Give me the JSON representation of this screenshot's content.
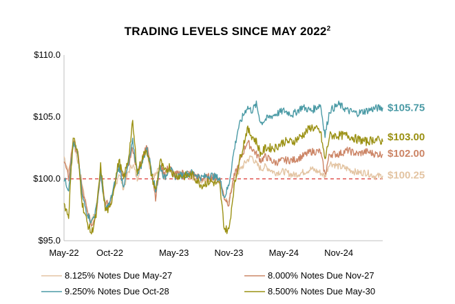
{
  "chart_data": {
    "type": "line",
    "title": "TRADING LEVELS SINCE MAY 2022",
    "title_superscript": "2",
    "xlabel": "",
    "ylabel": "",
    "ylim": [
      95,
      110
    ],
    "y_ticks": [
      "$95.0",
      "$100.0",
      "$105.0",
      "$110.0"
    ],
    "y_tick_values": [
      95,
      100,
      105,
      110
    ],
    "x_ticks": [
      "May-22",
      "Oct-22",
      "May-23",
      "Nov-23",
      "May-24",
      "Nov-24"
    ],
    "x_tick_months": [
      0,
      5,
      12,
      18,
      24,
      30
    ],
    "x_range_months": [
      0,
      34.8
    ],
    "reference_line": 100,
    "reference_color": "#d9302c",
    "grid": false,
    "legend_position": "bottom",
    "series": [
      {
        "name": "8.125% Notes Due May-27",
        "color": "#e3c4a2",
        "end_label": "$100.25",
        "points": [
          [
            0,
            101.8
          ],
          [
            0.5,
            100.5
          ],
          [
            1,
            103
          ],
          [
            1.5,
            101.5
          ],
          [
            2,
            99.5
          ],
          [
            2.5,
            97.5
          ],
          [
            3,
            96.5
          ],
          [
            3.5,
            97.5
          ],
          [
            4,
            100.5
          ],
          [
            4.5,
            98
          ],
          [
            5,
            97.8
          ],
          [
            5.5,
            99
          ],
          [
            6,
            100.5
          ],
          [
            6.5,
            99.2
          ],
          [
            7,
            100.5
          ],
          [
            7.5,
            101.2
          ],
          [
            8,
            100
          ],
          [
            8.5,
            101.5
          ],
          [
            9,
            102.5
          ],
          [
            9.5,
            100.5
          ],
          [
            10,
            100.3
          ],
          [
            10.5,
            101
          ],
          [
            11,
            100.2
          ],
          [
            11.5,
            100.8
          ],
          [
            12,
            100.3
          ],
          [
            13,
            100.4
          ],
          [
            14,
            100.1
          ],
          [
            15,
            99.8
          ],
          [
            16,
            100
          ],
          [
            17,
            99.8
          ],
          [
            17.5,
            98.5
          ],
          [
            18,
            98
          ],
          [
            18.5,
            99.8
          ],
          [
            19,
            100.5
          ],
          [
            19.5,
            101
          ],
          [
            20,
            101.5
          ],
          [
            20.5,
            101.8
          ],
          [
            21,
            101.2
          ],
          [
            21.5,
            100.8
          ],
          [
            22,
            101
          ],
          [
            23,
            100.5
          ],
          [
            24,
            100.6
          ],
          [
            25,
            100.3
          ],
          [
            26,
            100.5
          ],
          [
            27,
            100.8
          ],
          [
            28,
            100.5
          ],
          [
            28.5,
            100.2
          ],
          [
            29,
            101.3
          ],
          [
            30,
            101
          ],
          [
            31,
            100.8
          ],
          [
            32,
            100.5
          ],
          [
            33,
            100.5
          ],
          [
            34,
            100.2
          ],
          [
            34.8,
            100.25
          ]
        ]
      },
      {
        "name": "8.000% Notes Due Nov-27",
        "color": "#cc8566",
        "end_label": "$102.00",
        "points": [
          [
            0,
            101.5
          ],
          [
            0.5,
            100
          ],
          [
            1,
            103.2
          ],
          [
            1.5,
            102
          ],
          [
            2,
            99
          ],
          [
            2.5,
            97.5
          ],
          [
            3,
            96.2
          ],
          [
            3.5,
            97.2
          ],
          [
            4,
            100.5
          ],
          [
            4.5,
            98
          ],
          [
            5,
            98
          ],
          [
            5.5,
            99.5
          ],
          [
            6,
            101
          ],
          [
            6.5,
            100
          ],
          [
            7,
            101
          ],
          [
            7.5,
            102.5
          ],
          [
            8,
            100.5
          ],
          [
            8.5,
            101.5
          ],
          [
            9,
            102.8
          ],
          [
            9.5,
            101
          ],
          [
            10,
            98.5
          ],
          [
            10.5,
            101
          ],
          [
            11,
            100.5
          ],
          [
            11.5,
            101
          ],
          [
            12,
            100.3
          ],
          [
            13,
            100.5
          ],
          [
            14,
            100.4
          ],
          [
            15,
            100
          ],
          [
            16,
            100.2
          ],
          [
            17,
            100
          ],
          [
            17.5,
            98.5
          ],
          [
            18,
            98
          ],
          [
            18.5,
            100
          ],
          [
            19,
            101
          ],
          [
            19.5,
            102
          ],
          [
            20,
            103
          ],
          [
            20.5,
            102.5
          ],
          [
            21,
            102
          ],
          [
            21.5,
            101.5
          ],
          [
            22,
            101.8
          ],
          [
            23,
            101.3
          ],
          [
            24,
            101.5
          ],
          [
            25,
            101.5
          ],
          [
            26,
            101.8
          ],
          [
            27,
            102.2
          ],
          [
            28,
            102.2
          ],
          [
            28.5,
            100.3
          ],
          [
            29,
            102
          ],
          [
            30,
            102
          ],
          [
            31,
            102.3
          ],
          [
            32,
            102
          ],
          [
            33,
            102.2
          ],
          [
            34,
            102
          ],
          [
            34.8,
            102
          ]
        ]
      },
      {
        "name": "9.250% Notes Due Oct-28",
        "color": "#4a9aa5",
        "end_label": "$105.75",
        "points": [
          [
            0,
            100
          ],
          [
            0.5,
            99.2
          ],
          [
            1,
            102.8
          ],
          [
            1.5,
            102
          ],
          [
            2,
            98.5
          ],
          [
            2.5,
            97.3
          ],
          [
            3,
            96.5
          ],
          [
            3.5,
            97.5
          ],
          [
            4,
            100.5
          ],
          [
            4.5,
            97.5
          ],
          [
            5,
            98
          ],
          [
            5.5,
            99.5
          ],
          [
            6,
            101
          ],
          [
            6.5,
            99.5
          ],
          [
            7,
            101
          ],
          [
            7.5,
            103
          ],
          [
            8,
            100.5
          ],
          [
            8.5,
            101.2
          ],
          [
            9,
            102.5
          ],
          [
            9.5,
            101
          ],
          [
            10,
            99
          ],
          [
            10.5,
            101
          ],
          [
            11,
            100
          ],
          [
            11.5,
            101
          ],
          [
            12,
            100.2
          ],
          [
            13,
            100.3
          ],
          [
            14,
            100.5
          ],
          [
            15,
            100.1
          ],
          [
            16,
            100.3
          ],
          [
            17,
            100
          ],
          [
            17.5,
            98.5
          ],
          [
            18,
            99.5
          ],
          [
            18.5,
            102
          ],
          [
            19,
            104
          ],
          [
            19.5,
            105
          ],
          [
            20,
            105.8
          ],
          [
            20.5,
            105.5
          ],
          [
            21,
            106
          ],
          [
            21.5,
            104.5
          ],
          [
            22,
            104.8
          ],
          [
            23,
            105.2
          ],
          [
            24,
            105.5
          ],
          [
            25,
            105.2
          ],
          [
            26,
            105.8
          ],
          [
            27,
            105.5
          ],
          [
            28,
            106
          ],
          [
            28.5,
            103.5
          ],
          [
            29,
            105.5
          ],
          [
            30,
            106
          ],
          [
            31,
            105.5
          ],
          [
            32,
            105.3
          ],
          [
            33,
            105.5
          ],
          [
            34,
            105.7
          ],
          [
            34.8,
            105.75
          ]
        ]
      },
      {
        "name": "8.500% Notes Due May-30",
        "color": "#9a9012",
        "end_label": "$103.00",
        "points": [
          [
            0,
            98
          ],
          [
            0.5,
            97
          ],
          [
            1,
            103.5
          ],
          [
            1.5,
            102
          ],
          [
            2,
            98
          ],
          [
            2.5,
            96.5
          ],
          [
            3,
            95.6
          ],
          [
            3.5,
            97
          ],
          [
            4,
            101
          ],
          [
            4.5,
            97.5
          ],
          [
            5,
            97.5
          ],
          [
            5.5,
            99.5
          ],
          [
            6,
            101.5
          ],
          [
            6.5,
            100
          ],
          [
            7,
            101.5
          ],
          [
            7.5,
            104.5
          ],
          [
            8,
            100.5
          ],
          [
            8.5,
            101.5
          ],
          [
            9,
            102.5
          ],
          [
            9.5,
            100.5
          ],
          [
            10,
            99
          ],
          [
            10.5,
            101.5
          ],
          [
            11,
            100.5
          ],
          [
            11.5,
            101
          ],
          [
            12,
            100.3
          ],
          [
            13,
            100.2
          ],
          [
            14,
            100.3
          ],
          [
            15,
            99.5
          ],
          [
            16,
            99.8
          ],
          [
            17,
            99.5
          ],
          [
            17.5,
            96
          ],
          [
            18,
            95.8
          ],
          [
            18.5,
            99
          ],
          [
            19,
            101
          ],
          [
            19.5,
            102.5
          ],
          [
            20,
            104
          ],
          [
            20.5,
            103.5
          ],
          [
            21,
            103
          ],
          [
            21.5,
            102
          ],
          [
            22,
            102.5
          ],
          [
            23,
            102.5
          ],
          [
            24,
            103
          ],
          [
            25,
            103
          ],
          [
            26,
            103.5
          ],
          [
            27,
            104.2
          ],
          [
            28,
            103.8
          ],
          [
            28.5,
            101.5
          ],
          [
            29,
            103.5
          ],
          [
            30,
            103.5
          ],
          [
            31,
            103.5
          ],
          [
            32,
            103.2
          ],
          [
            33,
            103
          ],
          [
            34,
            103.2
          ],
          [
            34.8,
            103
          ]
        ]
      }
    ]
  }
}
